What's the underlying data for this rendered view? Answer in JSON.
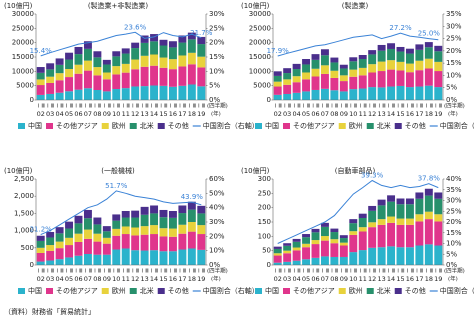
{
  "source": "（資料）財務省「貿易統計」",
  "chart_data": [
    {
      "type": "bar",
      "stacked": true,
      "unit_label": "(10億円)",
      "subtitle": "(製造業+非製造業)",
      "categories": [
        "02",
        "03",
        "04",
        "05",
        "06",
        "07",
        "08",
        "09",
        "10",
        "11",
        "12",
        "13",
        "14",
        "15",
        "16",
        "17",
        "18",
        "19"
      ],
      "quarter_labels": [
        "Ⅰ",
        "Ⅲ"
      ],
      "x_unit_quarter": "(四半期)",
      "x_unit_year": "(年)",
      "ylim": [
        0,
        30000
      ],
      "yticks": [
        0,
        5000,
        10000,
        15000,
        20000,
        25000,
        30000
      ],
      "y2lim": [
        0,
        30
      ],
      "y2ticks": [
        {
          "value": 0,
          "label": "0%"
        },
        {
          "value": 5,
          "label": "5%"
        },
        {
          "value": 10,
          "label": "10%"
        },
        {
          "value": 15,
          "label": "15%"
        },
        {
          "value": 20,
          "label": "20%"
        },
        {
          "value": 25,
          "label": "25%"
        },
        {
          "value": 30,
          "label": "30%"
        }
      ],
      "series": [
        {
          "name": "中国",
          "color": "#2bb3cc",
          "values": [
            1770,
            2110,
            2540,
            3050,
            3610,
            4100,
            3490,
            3010,
            3830,
            4140,
            4720,
            4840,
            5060,
            4940,
            4610,
            4950,
            5410,
            4770
          ]
        },
        {
          "name": "その他アジア",
          "color": "#e0358c",
          "values": [
            3450,
            3840,
            4350,
            4950,
            5550,
            6150,
            5100,
            4200,
            5100,
            5400,
            6000,
            6750,
            6900,
            6300,
            6150,
            6750,
            7050,
            6600
          ]
        },
        {
          "name": "欧州",
          "color": "#e8d23c",
          "values": [
            1960,
            2180,
            2470,
            2810,
            3150,
            3490,
            2890,
            2380,
            2890,
            3060,
            3400,
            3830,
            3910,
            3570,
            3490,
            3830,
            4000,
            3740
          ]
        },
        {
          "name": "北米",
          "color": "#27906c",
          "values": [
            2300,
            2560,
            2900,
            3300,
            3700,
            4100,
            3400,
            2800,
            3400,
            3600,
            4000,
            4500,
            4600,
            4200,
            4100,
            4500,
            4700,
            4400
          ]
        },
        {
          "name": "その他",
          "color": "#4a2f8c",
          "values": [
            2020,
            2110,
            2240,
            2390,
            2490,
            2660,
            2120,
            1610,
            1780,
            1800,
            1880,
            2580,
            2530,
            1990,
            2150,
            2470,
            2340,
            2490
          ]
        },
        {
          "name": "中国割合（右軸）",
          "type": "line",
          "axis": "y2",
          "color": "#3a82d6",
          "values": [
            15.4,
            16.5,
            17.5,
            18.5,
            19.5,
            20,
            20.5,
            21.5,
            22.5,
            23,
            23.6,
            21.5,
            22,
            23.5,
            22.5,
            22,
            23,
            21.7
          ],
          "value_labels": [
            "15.4%",
            null,
            null,
            null,
            null,
            null,
            null,
            null,
            null,
            null,
            "23.6%",
            null,
            null,
            null,
            null,
            null,
            null,
            "21.7%"
          ]
        }
      ]
    },
    {
      "type": "bar",
      "stacked": true,
      "unit_label": "(10億円)",
      "subtitle": "(製造業)",
      "categories": [
        "02",
        "03",
        "04",
        "05",
        "06",
        "07",
        "08",
        "09",
        "10",
        "11",
        "12",
        "13",
        "14",
        "15",
        "16",
        "17",
        "18",
        "19"
      ],
      "quarter_labels": [
        "Ⅰ",
        "Ⅲ"
      ],
      "x_unit_quarter": "(四半期)",
      "x_unit_year": "(年)",
      "ylim": [
        0,
        30000
      ],
      "yticks": [
        0,
        5000,
        10000,
        15000,
        20000,
        25000,
        30000
      ],
      "y2lim": [
        0,
        35
      ],
      "y2ticks": [
        {
          "value": 0,
          "label": "0%"
        },
        {
          "value": 5,
          "label": "5%"
        },
        {
          "value": 10,
          "label": "10%"
        },
        {
          "value": 15,
          "label": "15%"
        },
        {
          "value": 20,
          "label": "20%"
        },
        {
          "value": 25,
          "label": "25%"
        },
        {
          "value": 30,
          "label": "30%"
        },
        {
          "value": 35,
          "label": "35%"
        }
      ],
      "series": [
        {
          "name": "中国",
          "color": "#2bb3cc",
          "values": [
            1800,
            2100,
            2500,
            3000,
            3500,
            3900,
            3400,
            3000,
            3800,
            4000,
            4500,
            4400,
            4700,
            4900,
            4500,
            4700,
            5000,
            4500
          ]
        },
        {
          "name": "その他アジア",
          "color": "#e0358c",
          "values": [
            2900,
            3200,
            3700,
            4200,
            4700,
            5200,
            4300,
            3600,
            4300,
            4600,
            5100,
            5700,
            5900,
            5400,
            5200,
            5700,
            6000,
            5600
          ]
        },
        {
          "name": "欧州",
          "color": "#e8d23c",
          "values": [
            1700,
            1900,
            2100,
            2400,
            2700,
            3000,
            2500,
            2000,
            2500,
            2600,
            2900,
            3300,
            3300,
            3000,
            3000,
            3300,
            3400,
            3200
          ]
        },
        {
          "name": "北米",
          "color": "#27906c",
          "values": [
            2000,
            2200,
            2500,
            2800,
            3100,
            3500,
            2900,
            2400,
            2900,
            3100,
            3400,
            3800,
            3900,
            3600,
            3500,
            3800,
            4000,
            3700
          ]
        },
        {
          "name": "その他",
          "color": "#4a2f8c",
          "values": [
            1600,
            1700,
            1800,
            1900,
            2000,
            2100,
            1700,
            1300,
            1400,
            1400,
            1500,
            2000,
            2000,
            1600,
            1700,
            1900,
            1800,
            1900
          ]
        },
        {
          "name": "中国割合（右軸）",
          "type": "line",
          "axis": "y2",
          "color": "#3a82d6",
          "values": [
            17.9,
            19,
            20,
            21,
            22,
            22.5,
            23.5,
            24.5,
            25.5,
            26,
            26.5,
            25,
            26,
            27.2,
            26,
            25.5,
            25.0,
            24.5
          ],
          "value_labels": [
            "17.9%",
            null,
            null,
            null,
            null,
            null,
            null,
            null,
            null,
            null,
            null,
            null,
            null,
            "27.2%",
            null,
            null,
            "25.0%",
            null
          ]
        }
      ]
    },
    {
      "type": "bar",
      "stacked": true,
      "unit_label": "(10億円)",
      "subtitle": "(一般機械)",
      "categories": [
        "02",
        "03",
        "04",
        "05",
        "06",
        "07",
        "08",
        "09",
        "10",
        "11",
        "12",
        "13",
        "14",
        "15",
        "16",
        "17",
        "18",
        "19"
      ],
      "quarter_labels": [
        "Ⅰ",
        "Ⅲ"
      ],
      "x_unit_quarter": "(四半期)",
      "x_unit_year": "(年)",
      "ylim": [
        0,
        2500
      ],
      "yticks": [
        0,
        500,
        {
          "value": 1000,
          "label": "1,000"
        },
        {
          "value": 1500,
          "label": "1,500"
        },
        {
          "value": 2000,
          "label": "2,000"
        },
        {
          "value": 2500,
          "label": "2,500"
        }
      ],
      "y2lim": [
        0,
        60
      ],
      "y2ticks": [
        {
          "value": 0,
          "label": "0%"
        },
        {
          "value": 10,
          "label": "10%"
        },
        {
          "value": 20,
          "label": "20%"
        },
        {
          "value": 30,
          "label": "30%"
        },
        {
          "value": 40,
          "label": "40%"
        },
        {
          "value": 50,
          "label": "50%"
        },
        {
          "value": 60,
          "label": "60%"
        }
      ],
      "series": [
        {
          "name": "中国",
          "color": "#2bb3cc",
          "values": [
            100,
            130,
            170,
            220,
            270,
            320,
            300,
            300,
            450,
            480,
            430,
            420,
            430,
            400,
            400,
            450,
            480,
            440
          ]
        },
        {
          "name": "その他アジア",
          "color": "#e0358c",
          "values": [
            250,
            280,
            320,
            360,
            400,
            440,
            380,
            320,
            400,
            420,
            430,
            460,
            470,
            430,
            420,
            460,
            490,
            460
          ]
        },
        {
          "name": "欧州",
          "color": "#e8d23c",
          "values": [
            150,
            170,
            190,
            210,
            240,
            270,
            230,
            170,
            200,
            220,
            230,
            250,
            260,
            240,
            240,
            260,
            280,
            260
          ]
        },
        {
          "name": "北米",
          "color": "#27906c",
          "values": [
            200,
            220,
            240,
            270,
            300,
            330,
            270,
            190,
            240,
            260,
            290,
            330,
            340,
            320,
            310,
            340,
            360,
            340
          ]
        },
        {
          "name": "その他",
          "color": "#4a2f8c",
          "values": [
            150,
            160,
            180,
            200,
            220,
            240,
            200,
            150,
            180,
            190,
            200,
            230,
            230,
            210,
            200,
            220,
            230,
            220
          ]
        },
        {
          "name": "中国割合（右軸）",
          "type": "line",
          "axis": "y2",
          "color": "#3a82d6",
          "values": [
            21.2,
            24,
            28,
            32,
            36,
            40,
            42,
            46,
            51.7,
            50,
            48,
            47,
            46,
            44,
            43,
            43.5,
            43.9,
            42
          ],
          "value_labels": [
            "21.2%",
            null,
            null,
            null,
            null,
            null,
            null,
            null,
            "51.7%",
            null,
            null,
            null,
            null,
            null,
            null,
            null,
            "43.9%",
            null
          ]
        }
      ]
    },
    {
      "type": "bar",
      "stacked": true,
      "unit_label": "(10億円)",
      "subtitle": "(自動車部品)",
      "categories": [
        "02",
        "03",
        "04",
        "05",
        "06",
        "07",
        "08",
        "09",
        "10",
        "11",
        "12",
        "13",
        "14",
        "15",
        "16",
        "17",
        "18",
        "19"
      ],
      "quarter_labels": [
        "Ⅰ",
        "Ⅲ"
      ],
      "x_unit_quarter": "(四半期)",
      "x_unit_year": "(年)",
      "ylim": [
        0,
        300
      ],
      "yticks": [
        0,
        50,
        100,
        150,
        200,
        250,
        300
      ],
      "y2lim": [
        0,
        40
      ],
      "y2ticks": [
        {
          "value": 0,
          "label": "0%"
        },
        {
          "value": 5,
          "label": "5%"
        },
        {
          "value": 10,
          "label": "10%"
        },
        {
          "value": 15,
          "label": "15%"
        },
        {
          "value": 20,
          "label": "20%"
        },
        {
          "value": 25,
          "label": "25%"
        },
        {
          "value": 30,
          "label": "30%"
        },
        {
          "value": 35,
          "label": "35%"
        },
        {
          "value": 40,
          "label": "40%"
        }
      ],
      "series": [
        {
          "name": "中国",
          "color": "#2bb3cc",
          "values": [
            8,
            11,
            15,
            20,
            25,
            30,
            28,
            28,
            45,
            52,
            60,
            62,
            65,
            62,
            62,
            68,
            72,
            68
          ]
        },
        {
          "name": "その他アジア",
          "color": "#e0358c",
          "values": [
            25,
            30,
            36,
            42,
            48,
            55,
            48,
            40,
            60,
            65,
            72,
            78,
            82,
            78,
            78,
            84,
            88,
            84
          ]
        },
        {
          "name": "欧州",
          "color": "#e8d23c",
          "values": [
            8,
            9,
            10,
            12,
            14,
            16,
            14,
            10,
            13,
            15,
            17,
            20,
            22,
            22,
            22,
            25,
            26,
            25
          ]
        },
        {
          "name": "北米",
          "color": "#27906c",
          "values": [
            15,
            17,
            20,
            23,
            27,
            32,
            25,
            16,
            28,
            32,
            40,
            48,
            52,
            50,
            50,
            54,
            56,
            54
          ]
        },
        {
          "name": "その他",
          "color": "#4a2f8c",
          "values": [
            8,
            9,
            10,
            11,
            12,
            14,
            12,
            10,
            14,
            15,
            17,
            20,
            22,
            20,
            20,
            22,
            24,
            22
          ]
        },
        {
          "name": "中国割合（右軸）",
          "type": "line",
          "axis": "y2",
          "color": "#3a82d6",
          "values": [
            10,
            12,
            14,
            16,
            18,
            20,
            23,
            28,
            33,
            36,
            39.3,
            37,
            36,
            37,
            36,
            36.5,
            37.8,
            36
          ],
          "value_labels": [
            null,
            null,
            null,
            null,
            null,
            null,
            null,
            null,
            null,
            null,
            "39.3%",
            null,
            null,
            null,
            null,
            null,
            "37.8%",
            null
          ]
        }
      ]
    }
  ]
}
